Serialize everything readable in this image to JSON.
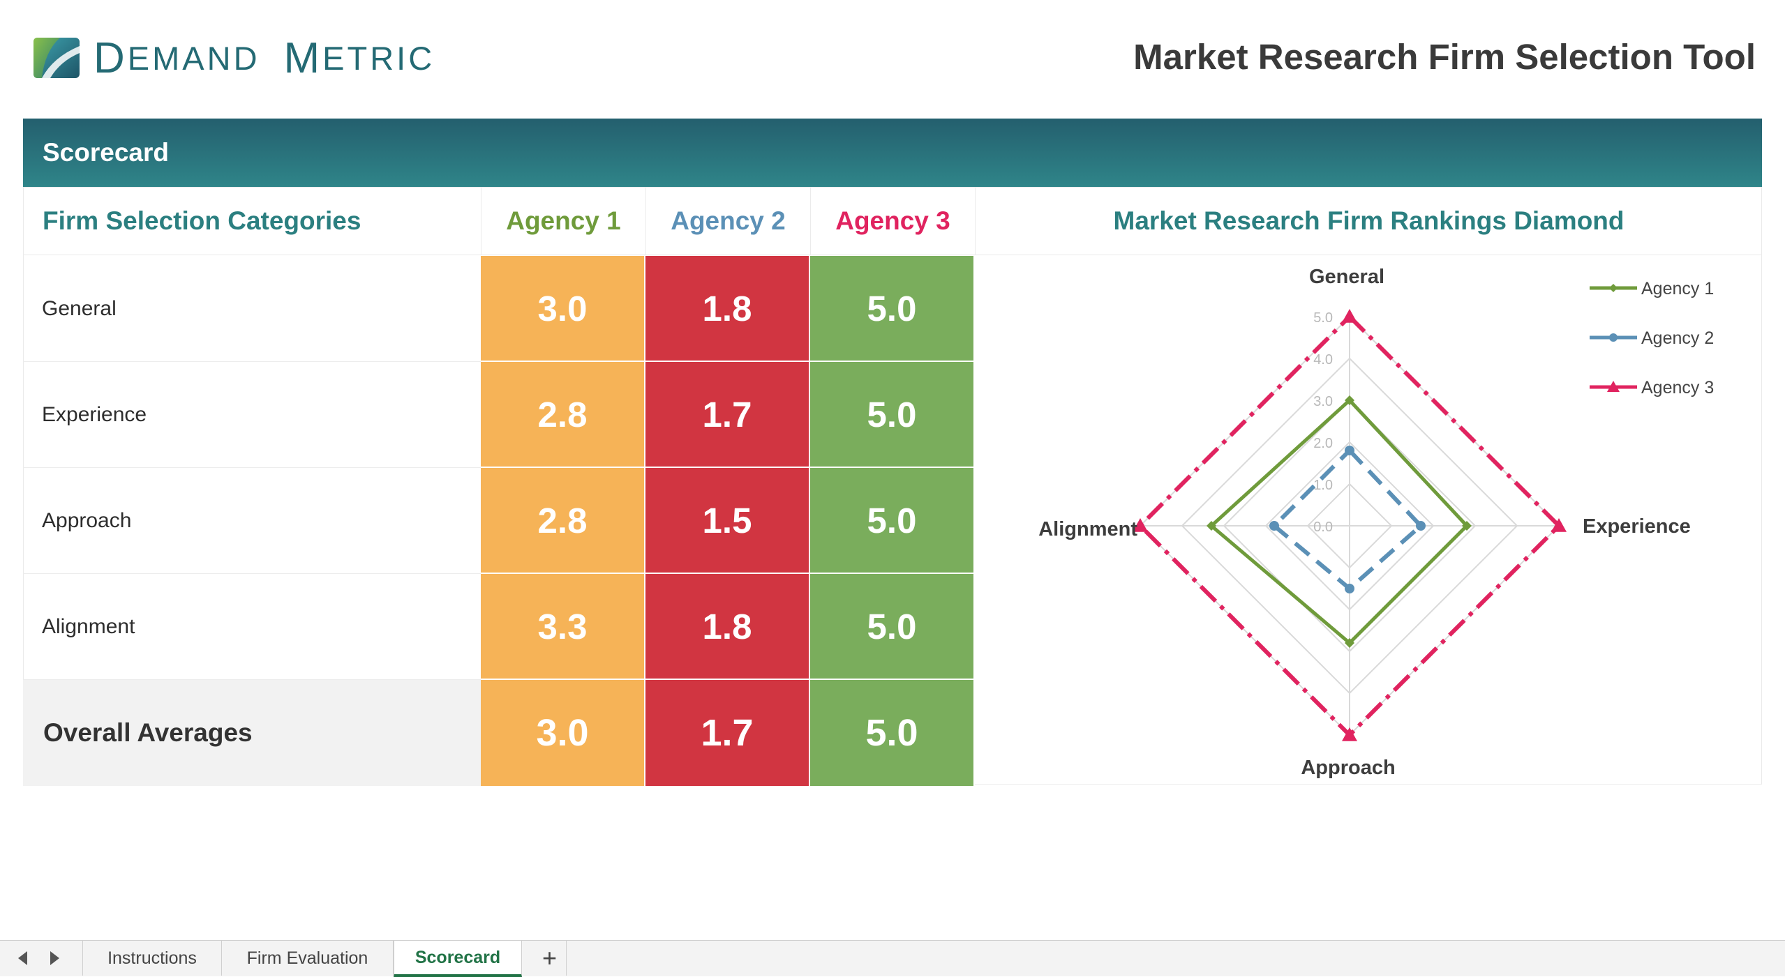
{
  "header": {
    "brand_name": "Demand Metric",
    "tool_title": "Market Research Firm Selection Tool"
  },
  "band": {
    "title": "Scorecard"
  },
  "table": {
    "category_header": "Firm Selection Categories",
    "chart_header": "Market Research Firm Rankings Diamond",
    "agencies": [
      {
        "name": "Agency 1",
        "color": "#6f9b3b"
      },
      {
        "name": "Agency 2",
        "color": "#5b90b6"
      },
      {
        "name": "Agency 3",
        "color": "#e0235f"
      }
    ],
    "rows": [
      {
        "label": "General",
        "values": [
          "3.0",
          "1.8",
          "5.0"
        ]
      },
      {
        "label": "Experience",
        "values": [
          "2.8",
          "1.7",
          "5.0"
        ]
      },
      {
        "label": "Approach",
        "values": [
          "2.8",
          "1.5",
          "5.0"
        ]
      },
      {
        "label": "Alignment",
        "values": [
          "3.3",
          "1.8",
          "5.0"
        ]
      }
    ],
    "total": {
      "label": "Overall Averages",
      "values": [
        "3.0",
        "1.7",
        "5.0"
      ]
    },
    "cell_colors": [
      "#f6b357",
      "#d13541",
      "#7aad5c"
    ]
  },
  "chart_data": {
    "type": "radar",
    "categories": [
      "General",
      "Experience",
      "Approach",
      "Alignment"
    ],
    "series": [
      {
        "name": "Agency 1",
        "values": [
          3.0,
          2.8,
          2.8,
          3.3
        ],
        "color": "#6f9b3b",
        "line": "solid",
        "marker": "diamond"
      },
      {
        "name": "Agency 2",
        "values": [
          1.8,
          1.7,
          1.5,
          1.8
        ],
        "color": "#5b90b6",
        "line": "dash",
        "marker": "circle"
      },
      {
        "name": "Agency 3",
        "values": [
          5.0,
          5.0,
          5.0,
          5.0
        ],
        "color": "#e0235f",
        "line": "dashdot",
        "marker": "triangle"
      }
    ],
    "rlim": [
      0,
      5
    ],
    "ticks": [
      "0.0",
      "1.0",
      "2.0",
      "3.0",
      "4.0",
      "5.0"
    ],
    "grid": true,
    "legend": "top-right"
  },
  "tabs": {
    "items": [
      "Instructions",
      "Firm Evaluation",
      "Scorecard"
    ],
    "active": "Scorecard",
    "add_label": "+"
  }
}
